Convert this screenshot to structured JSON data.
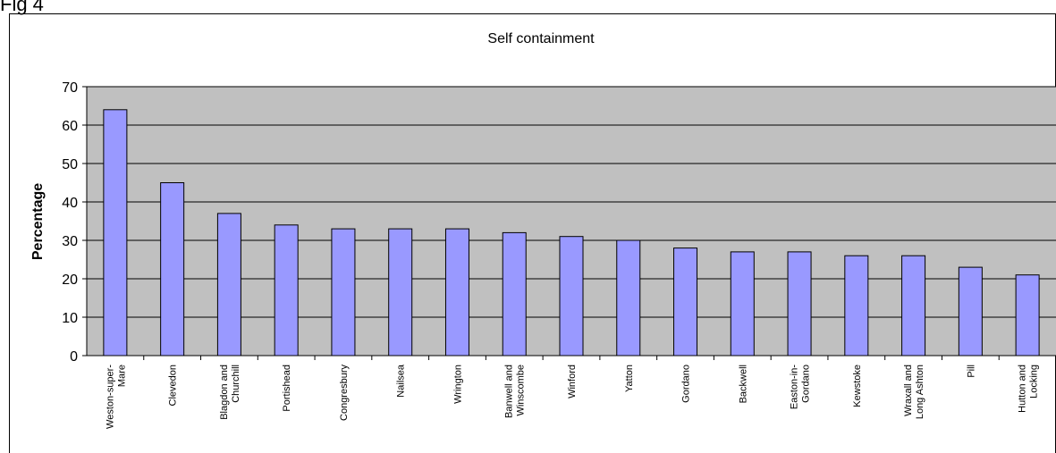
{
  "figure_label": "Fig 4",
  "chart_data": {
    "type": "bar",
    "title": "Self containment",
    "xlabel": "",
    "ylabel": "Percentage",
    "ylim": [
      0,
      70
    ],
    "yticks": [
      0,
      10,
      20,
      30,
      40,
      50,
      60,
      70
    ],
    "grid": true,
    "legend": "none",
    "colors": {
      "bar_fill": "#9999ff",
      "plot_background": "#c0c0c0"
    },
    "categories": [
      "Weston-super-Mare",
      "Clevedon",
      "Blagdon and Churchill",
      "Portishead",
      "Congresbury",
      "Nailsea",
      "Wrington",
      "Banwell and Winscombe",
      "Winford",
      "Yatton",
      "Gordano",
      "Backwell",
      "Easton-in-Gordano",
      "Kewstoke",
      "Wraxall and Long Ashton",
      "Pill",
      "Hutton and Locking"
    ],
    "category_lines": [
      [
        "Weston-super-",
        "Mare"
      ],
      [
        "Clevedon"
      ],
      [
        "Blagdon and",
        "Churchill"
      ],
      [
        "Portishead"
      ],
      [
        "Congresbury"
      ],
      [
        "Nailsea"
      ],
      [
        "Wrington"
      ],
      [
        "Banwell and",
        "Winscombe"
      ],
      [
        "Winford"
      ],
      [
        "Yatton"
      ],
      [
        "Gordano"
      ],
      [
        "Backwell"
      ],
      [
        "Easton-in-",
        "Gordano"
      ],
      [
        "Kewstoke"
      ],
      [
        "Wraxall and",
        "Long Ashton"
      ],
      [
        "Pill"
      ],
      [
        "Hutton and",
        "Locking"
      ]
    ],
    "values": [
      64,
      45,
      37,
      34,
      33,
      33,
      33,
      32,
      31,
      30,
      28,
      27,
      27,
      26,
      26,
      23,
      21
    ]
  }
}
